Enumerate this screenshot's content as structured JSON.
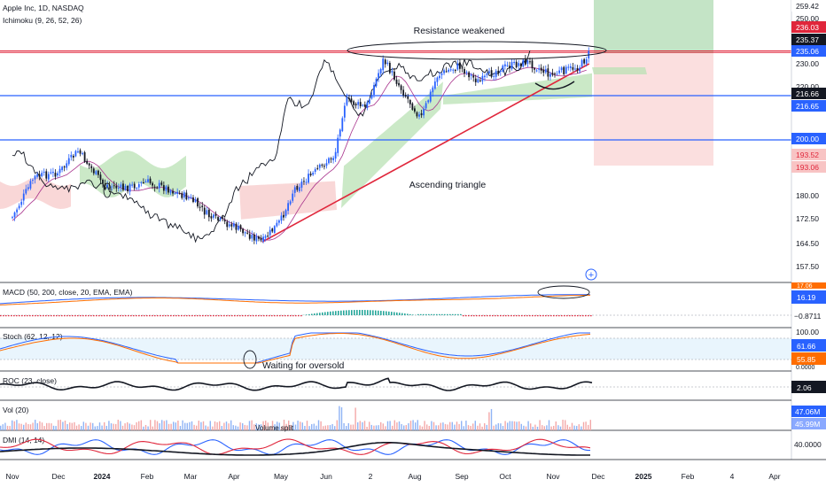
{
  "header": {
    "symbol": "Apple Inc, 1D, NASDAQ",
    "indicator": "Ichimoku (9, 26, 52, 26)"
  },
  "colors": {
    "up": "#2962ff",
    "down": "#131722",
    "support": "#2962ff",
    "resistance": "#e0263b",
    "trendline": "#e0263b",
    "cloud_bull": "#b9e2b4",
    "cloud_bear": "#f7c9c9",
    "kijun": "#a8328c",
    "chikou": "#131722",
    "macd_line": "#2962ff",
    "signal_line": "#ff6d00",
    "target_zone": "#a5d6a7",
    "stop_zone": "#f8c4c4"
  },
  "chart_data": [
    {
      "type": "candlestick",
      "title": "Apple Inc, 1D, NASDAQ",
      "ylim": [
        155,
        262
      ],
      "x_ticks": [
        "Nov",
        "Dec",
        "2024",
        "Feb",
        "Mar",
        "Apr",
        "May",
        "Jun",
        "2",
        "Aug",
        "Sep",
        "Oct",
        "Nov",
        "Dec",
        "2025",
        "Feb",
        "4",
        "Apr"
      ],
      "y_ticks": [
        157.5,
        164.5,
        172.5,
        180.0,
        193.06,
        200.0,
        216.65,
        220.0,
        230.0,
        235.06,
        250.0
      ],
      "price_labels": [
        {
          "value": "259.42",
          "style": "plain"
        },
        {
          "value": "236.03",
          "style": "red"
        },
        {
          "value": "235.37",
          "style": "dark"
        },
        {
          "value": "235.06",
          "style": "blue"
        },
        {
          "value": "216.66",
          "style": "dark"
        },
        {
          "value": "216.65",
          "style": "blue"
        },
        {
          "value": "200.00",
          "style": "blue"
        },
        {
          "value": "193.52",
          "style": "pink"
        },
        {
          "value": "193.06",
          "style": "pink"
        }
      ],
      "close_path": [
        [
          "2023-11-01",
          173
        ],
        [
          "2023-11-15",
          188
        ],
        [
          "2023-12-01",
          190
        ],
        [
          "2023-12-15",
          197
        ],
        [
          "2024-01-02",
          185
        ],
        [
          "2024-01-16",
          183
        ],
        [
          "2024-02-01",
          186
        ],
        [
          "2024-02-15",
          183
        ],
        [
          "2024-03-01",
          179
        ],
        [
          "2024-03-15",
          173
        ],
        [
          "2024-04-01",
          170
        ],
        [
          "2024-04-19",
          165
        ],
        [
          "2024-05-01",
          172
        ],
        [
          "2024-05-10",
          183
        ],
        [
          "2024-05-24",
          190
        ],
        [
          "2024-06-07",
          196
        ],
        [
          "2024-06-11",
          207
        ],
        [
          "2024-06-14",
          215
        ],
        [
          "2024-06-28",
          212
        ],
        [
          "2024-07-10",
          232
        ],
        [
          "2024-07-24",
          218
        ],
        [
          "2024-08-05",
          208
        ],
        [
          "2024-08-16",
          225
        ],
        [
          "2024-08-30",
          229
        ],
        [
          "2024-09-13",
          222
        ],
        [
          "2024-09-27",
          228
        ],
        [
          "2024-10-15",
          231
        ],
        [
          "2024-10-31",
          225
        ],
        [
          "2024-11-08",
          227
        ],
        [
          "2024-11-19",
          229
        ],
        [
          "2024-11-25",
          235
        ]
      ],
      "support_levels": [
        216.65,
        200.0
      ],
      "resistance_levels": [
        235.37,
        236.03
      ],
      "trendline": [
        [
          "2024-04-19",
          165
        ],
        [
          "2024-11-25",
          230
        ]
      ],
      "target_zone": [
        235.06,
        262
      ],
      "stop_zone": [
        193.06,
        235.06
      ],
      "annotations": [
        "Resistance weakened",
        "Ascending triangle"
      ]
    },
    {
      "type": "line",
      "title": "MACD (50, 200, close, 20, EMA, EMA)",
      "labels": [
        {
          "value": "17.06",
          "style": "orange"
        },
        {
          "value": "16.19",
          "style": "blue"
        },
        {
          "value": "−0.8711",
          "style": "plain"
        }
      ],
      "series": [
        {
          "name": "MACD",
          "color": "#2962ff"
        },
        {
          "name": "Signal",
          "color": "#ff6d00"
        }
      ]
    },
    {
      "type": "line",
      "title": "Stoch (62, 12, 12)",
      "y_ticks": [
        "100.00",
        "0.0000"
      ],
      "labels": [
        {
          "value": "61.66",
          "style": "blue"
        },
        {
          "value": "55.85",
          "style": "orange"
        }
      ],
      "annotation": "Waiting for oversold"
    },
    {
      "type": "line",
      "title": "ROC (23, close)",
      "labels": [
        {
          "value": "2.06",
          "style": "dark"
        }
      ]
    },
    {
      "type": "bar",
      "title": "Vol (20)",
      "labels": [
        {
          "value": "47.06M",
          "style": "blue"
        },
        {
          "value": "45.99M",
          "style": "blue"
        }
      ],
      "annotation": "Volume split"
    },
    {
      "type": "line",
      "title": "DMI (14, 14)",
      "labels": [
        {
          "value": "40.0000",
          "style": "plain"
        }
      ]
    }
  ]
}
